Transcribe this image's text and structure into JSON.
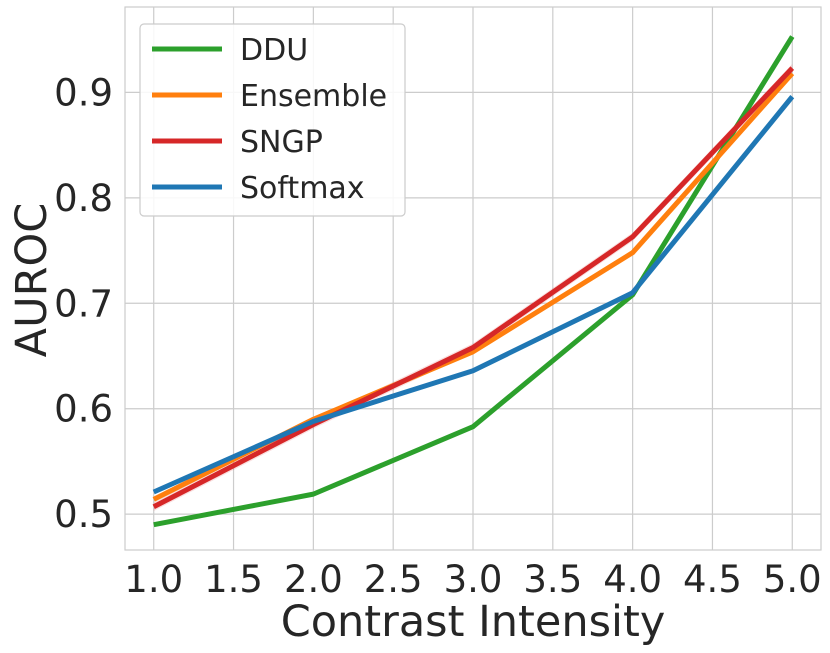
{
  "chart_data": {
    "type": "line",
    "title": "",
    "xlabel": "Contrast Intensity",
    "ylabel": "AUROC",
    "x": [
      1.0,
      2.0,
      3.0,
      4.0,
      5.0
    ],
    "xlim": [
      0.82,
      5.18
    ],
    "ylim": [
      0.466,
      0.981
    ],
    "xticks": [
      1.0,
      1.5,
      2.0,
      2.5,
      3.0,
      3.5,
      4.0,
      4.5,
      5.0
    ],
    "xtick_labels": [
      "1.0",
      "1.5",
      "2.0",
      "2.5",
      "3.0",
      "3.5",
      "4.0",
      "4.5",
      "5.0"
    ],
    "yticks": [
      0.5,
      0.6,
      0.7,
      0.8,
      0.9
    ],
    "ytick_labels": [
      "0.5",
      "0.6",
      "0.7",
      "0.8",
      "0.9"
    ],
    "grid": true,
    "legend_position": "top-left",
    "series": [
      {
        "name": "DDU",
        "color": "#2ca02c",
        "values": [
          0.49,
          0.519,
          0.583,
          0.708,
          0.953
        ]
      },
      {
        "name": "Ensemble",
        "color": "#ff7f0e",
        "values": [
          0.514,
          0.59,
          0.654,
          0.748,
          0.918
        ]
      },
      {
        "name": "SNGP",
        "color": "#d62728",
        "values": [
          0.507,
          0.585,
          0.658,
          0.763,
          0.923
        ],
        "band": 0.004
      },
      {
        "name": "Softmax",
        "color": "#1f77b4",
        "values": [
          0.521,
          0.588,
          0.636,
          0.71,
          0.896
        ]
      }
    ]
  }
}
